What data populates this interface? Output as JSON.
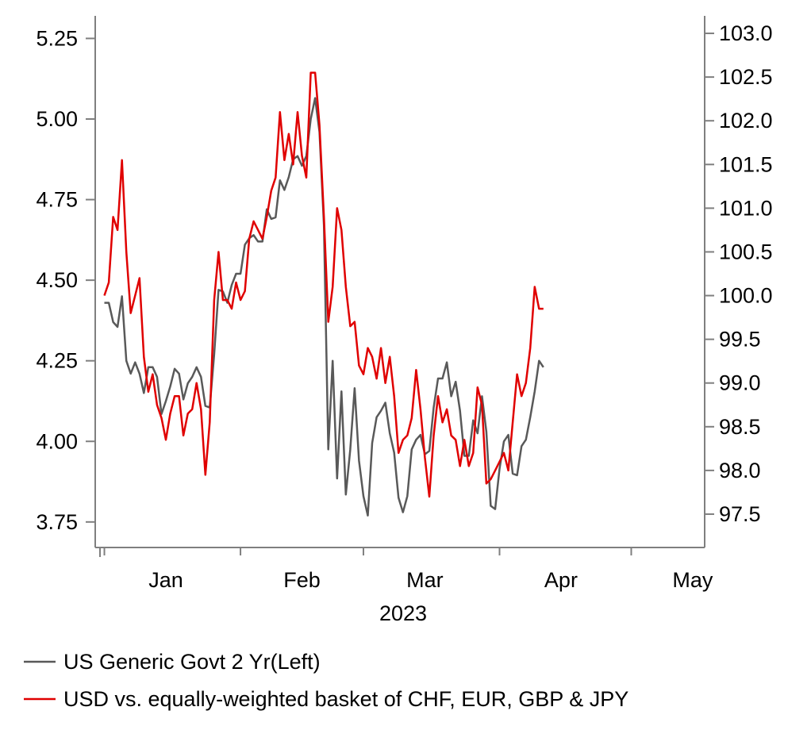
{
  "chart_data": {
    "type": "line",
    "xlabel": "2023",
    "x_tick_labels": [
      "Jan",
      "Feb",
      "Mar",
      "Apr",
      "May"
    ],
    "x_month_boundaries": [
      "2023-01-01",
      "2023-02-01",
      "2023-03-01",
      "2023-04-01",
      "2023-05-01"
    ],
    "x_tick_positions": [
      "2023-01-15",
      "2023-02-15",
      "2023-03-15",
      "2023-04-15",
      "2023-05-15"
    ],
    "xlim": [
      "2022-12-31",
      "2023-05-17"
    ],
    "y_left": {
      "ylim": [
        3.72,
        5.32
      ],
      "ticks": [
        3.75,
        4.0,
        4.25,
        4.5,
        4.75,
        5.0,
        5.25
      ],
      "tick_labels": [
        "3.75",
        "4.00",
        "4.25",
        "4.50",
        "4.75",
        "5.00",
        "5.25"
      ]
    },
    "y_right": {
      "ylim": [
        97.3,
        103.2
      ],
      "ticks": [
        97.5,
        98.0,
        98.5,
        99.0,
        99.5,
        100.0,
        100.5,
        101.0,
        101.5,
        102.0,
        102.5,
        103.0
      ],
      "tick_labels": [
        "97.5",
        "98.0",
        "98.5",
        "99.0",
        "99.5",
        "100.0",
        "100.5",
        "101.0",
        "101.5",
        "102.0",
        "102.5",
        "103.0"
      ]
    },
    "grid": false,
    "legend_position": "bottom",
    "series": [
      {
        "name": "US Generic Govt 2 Yr(Left)",
        "axis": "left",
        "color": "#595959",
        "points": [
          [
            "2023-01-01",
            4.43
          ],
          [
            "2023-01-02",
            4.43
          ],
          [
            "2023-01-03",
            4.37
          ],
          [
            "2023-01-04",
            4.355
          ],
          [
            "2023-01-05",
            4.45
          ],
          [
            "2023-01-06",
            4.25
          ],
          [
            "2023-01-07",
            4.21
          ],
          [
            "2023-01-08",
            4.245
          ],
          [
            "2023-01-09",
            4.21
          ],
          [
            "2023-01-10",
            4.15
          ],
          [
            "2023-01-11",
            4.23
          ],
          [
            "2023-01-12",
            4.23
          ],
          [
            "2023-01-13",
            4.2
          ],
          [
            "2023-01-14",
            4.085
          ],
          [
            "2023-01-15",
            4.125
          ],
          [
            "2023-01-16",
            4.17
          ],
          [
            "2023-01-17",
            4.225
          ],
          [
            "2023-01-18",
            4.21
          ],
          [
            "2023-01-19",
            4.13
          ],
          [
            "2023-01-20",
            4.18
          ],
          [
            "2023-01-21",
            4.2
          ],
          [
            "2023-01-22",
            4.23
          ],
          [
            "2023-01-23",
            4.2
          ],
          [
            "2023-01-24",
            4.11
          ],
          [
            "2023-01-25",
            4.105
          ],
          [
            "2023-01-26",
            4.27
          ],
          [
            "2023-01-27",
            4.47
          ],
          [
            "2023-01-28",
            4.465
          ],
          [
            "2023-01-29",
            4.43
          ],
          [
            "2023-01-30",
            4.485
          ],
          [
            "2023-01-31",
            4.52
          ],
          [
            "2023-02-01",
            4.52
          ],
          [
            "2023-02-02",
            4.61
          ],
          [
            "2023-02-03",
            4.63
          ],
          [
            "2023-02-04",
            4.64
          ],
          [
            "2023-02-05",
            4.62
          ],
          [
            "2023-02-06",
            4.62
          ],
          [
            "2023-02-07",
            4.72
          ],
          [
            "2023-02-08",
            4.69
          ],
          [
            "2023-02-09",
            4.695
          ],
          [
            "2023-02-10",
            4.81
          ],
          [
            "2023-02-11",
            4.78
          ],
          [
            "2023-02-12",
            4.82
          ],
          [
            "2023-02-13",
            4.875
          ],
          [
            "2023-02-14",
            4.885
          ],
          [
            "2023-02-15",
            4.855
          ],
          [
            "2023-02-16",
            4.885
          ],
          [
            "2023-02-17",
            5.0
          ],
          [
            "2023-02-18",
            5.065
          ],
          [
            "2023-02-19",
            4.96
          ],
          [
            "2023-02-20",
            4.67
          ],
          [
            "2023-02-21",
            3.975
          ],
          [
            "2023-02-22",
            4.25
          ],
          [
            "2023-02-23",
            3.885
          ],
          [
            "2023-02-24",
            4.155
          ],
          [
            "2023-02-25",
            3.835
          ],
          [
            "2023-02-26",
            3.975
          ],
          [
            "2023-02-27",
            4.165
          ],
          [
            "2023-02-28",
            3.94
          ],
          [
            "2023-03-01",
            3.83
          ],
          [
            "2023-03-02",
            3.77
          ],
          [
            "2023-03-03",
            3.995
          ],
          [
            "2023-03-04",
            4.075
          ],
          [
            "2023-03-05",
            4.095
          ],
          [
            "2023-03-06",
            4.12
          ],
          [
            "2023-03-07",
            4.025
          ],
          [
            "2023-03-08",
            3.965
          ],
          [
            "2023-03-09",
            3.825
          ],
          [
            "2023-03-10",
            3.78
          ],
          [
            "2023-03-11",
            3.83
          ],
          [
            "2023-03-12",
            3.975
          ],
          [
            "2023-03-13",
            4.005
          ],
          [
            "2023-03-14",
            4.02
          ],
          [
            "2023-03-15",
            3.96
          ],
          [
            "2023-03-16",
            3.97
          ],
          [
            "2023-03-17",
            4.105
          ],
          [
            "2023-03-18",
            4.195
          ],
          [
            "2023-03-19",
            4.195
          ],
          [
            "2023-03-20",
            4.245
          ],
          [
            "2023-03-21",
            4.14
          ],
          [
            "2023-03-22",
            4.185
          ],
          [
            "2023-03-23",
            4.095
          ],
          [
            "2023-03-24",
            3.955
          ],
          [
            "2023-03-25",
            3.955
          ],
          [
            "2023-03-26",
            4.065
          ],
          [
            "2023-03-27",
            4.025
          ],
          [
            "2023-03-28",
            4.14
          ],
          [
            "2023-03-29",
            4.03
          ],
          [
            "2023-03-30",
            3.8
          ],
          [
            "2023-03-31",
            3.79
          ],
          [
            "2023-04-01",
            3.915
          ],
          [
            "2023-04-02",
            4.0
          ],
          [
            "2023-04-03",
            4.02
          ],
          [
            "2023-04-04",
            3.9
          ],
          [
            "2023-04-05",
            3.895
          ],
          [
            "2023-04-06",
            3.985
          ],
          [
            "2023-04-07",
            4.005
          ],
          [
            "2023-04-08",
            4.075
          ],
          [
            "2023-04-09",
            4.155
          ],
          [
            "2023-04-10",
            4.25
          ],
          [
            "2023-04-11",
            4.23
          ]
        ]
      },
      {
        "name": "USD vs. equally-weighted basket of CHF, EUR, GBP & JPY",
        "axis": "right",
        "color": "#e00000",
        "points": [
          [
            "2023-01-01",
            100.0
          ],
          [
            "2023-01-02",
            100.15
          ],
          [
            "2023-01-03",
            100.9
          ],
          [
            "2023-01-04",
            100.75
          ],
          [
            "2023-01-05",
            101.55
          ],
          [
            "2023-01-06",
            100.5
          ],
          [
            "2023-01-07",
            99.8
          ],
          [
            "2023-01-08",
            100.0
          ],
          [
            "2023-01-09",
            100.2
          ],
          [
            "2023-01-10",
            99.3
          ],
          [
            "2023-01-11",
            98.9
          ],
          [
            "2023-01-12",
            99.1
          ],
          [
            "2023-01-13",
            98.75
          ],
          [
            "2023-01-14",
            98.6
          ],
          [
            "2023-01-15",
            98.35
          ],
          [
            "2023-01-16",
            98.65
          ],
          [
            "2023-01-17",
            98.85
          ],
          [
            "2023-01-18",
            98.85
          ],
          [
            "2023-01-19",
            98.4
          ],
          [
            "2023-01-20",
            98.65
          ],
          [
            "2023-01-21",
            98.7
          ],
          [
            "2023-01-22",
            99.0
          ],
          [
            "2023-01-23",
            98.7
          ],
          [
            "2023-01-24",
            97.95
          ],
          [
            "2023-01-25",
            98.55
          ],
          [
            "2023-01-26",
            99.95
          ],
          [
            "2023-01-27",
            100.5
          ],
          [
            "2023-01-28",
            99.95
          ],
          [
            "2023-01-29",
            99.95
          ],
          [
            "2023-01-30",
            99.85
          ],
          [
            "2023-01-31",
            100.15
          ],
          [
            "2023-02-01",
            99.95
          ],
          [
            "2023-02-02",
            100.05
          ],
          [
            "2023-02-03",
            100.65
          ],
          [
            "2023-02-04",
            100.85
          ],
          [
            "2023-02-05",
            100.75
          ],
          [
            "2023-02-06",
            100.65
          ],
          [
            "2023-02-07",
            100.9
          ],
          [
            "2023-02-08",
            101.2
          ],
          [
            "2023-02-09",
            101.35
          ],
          [
            "2023-02-10",
            102.1
          ],
          [
            "2023-02-11",
            101.55
          ],
          [
            "2023-02-12",
            101.85
          ],
          [
            "2023-02-13",
            101.5
          ],
          [
            "2023-02-14",
            102.1
          ],
          [
            "2023-02-15",
            101.6
          ],
          [
            "2023-02-16",
            101.35
          ],
          [
            "2023-02-17",
            102.55
          ],
          [
            "2023-02-18",
            102.55
          ],
          [
            "2023-02-19",
            101.95
          ],
          [
            "2023-02-20",
            100.9
          ],
          [
            "2023-02-21",
            99.7
          ],
          [
            "2023-02-22",
            100.1
          ],
          [
            "2023-02-23",
            101.0
          ],
          [
            "2023-02-24",
            100.75
          ],
          [
            "2023-02-25",
            100.1
          ],
          [
            "2023-02-26",
            99.65
          ],
          [
            "2023-02-27",
            99.7
          ],
          [
            "2023-02-28",
            99.2
          ],
          [
            "2023-03-01",
            99.1
          ],
          [
            "2023-03-02",
            99.4
          ],
          [
            "2023-03-03",
            99.3
          ],
          [
            "2023-03-04",
            99.05
          ],
          [
            "2023-03-05",
            99.4
          ],
          [
            "2023-03-06",
            99.0
          ],
          [
            "2023-03-07",
            99.3
          ],
          [
            "2023-03-08",
            98.85
          ],
          [
            "2023-03-09",
            98.2
          ],
          [
            "2023-03-10",
            98.35
          ],
          [
            "2023-03-11",
            98.4
          ],
          [
            "2023-03-12",
            98.6
          ],
          [
            "2023-03-13",
            99.15
          ],
          [
            "2023-03-14",
            98.7
          ],
          [
            "2023-03-15",
            98.15
          ],
          [
            "2023-03-16",
            97.7
          ],
          [
            "2023-03-17",
            98.4
          ],
          [
            "2023-03-18",
            98.85
          ],
          [
            "2023-03-19",
            98.55
          ],
          [
            "2023-03-20",
            98.7
          ],
          [
            "2023-03-21",
            98.4
          ],
          [
            "2023-03-22",
            98.35
          ],
          [
            "2023-03-23",
            98.05
          ],
          [
            "2023-03-24",
            98.35
          ],
          [
            "2023-03-25",
            98.05
          ],
          [
            "2023-03-26",
            98.2
          ],
          [
            "2023-03-27",
            98.95
          ],
          [
            "2023-03-28",
            98.75
          ],
          [
            "2023-03-29",
            97.85
          ],
          [
            "2023-03-30",
            97.9
          ],
          [
            "2023-03-31",
            98.0
          ],
          [
            "2023-04-01",
            98.1
          ],
          [
            "2023-04-02",
            98.2
          ],
          [
            "2023-04-03",
            98.0
          ],
          [
            "2023-04-04",
            98.55
          ],
          [
            "2023-04-05",
            99.1
          ],
          [
            "2023-04-06",
            98.85
          ],
          [
            "2023-04-07",
            99.0
          ],
          [
            "2023-04-08",
            99.4
          ],
          [
            "2023-04-09",
            100.1
          ],
          [
            "2023-04-10",
            99.85
          ],
          [
            "2023-04-11",
            99.85
          ]
        ]
      }
    ]
  }
}
